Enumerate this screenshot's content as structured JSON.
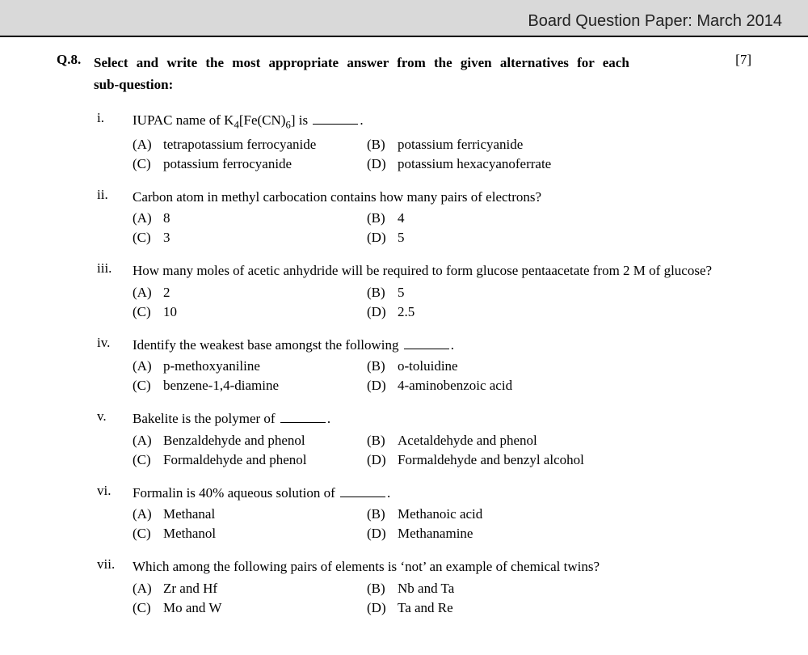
{
  "header": {
    "title": "Board Question Paper: March 2014"
  },
  "question": {
    "number": "Q.8.",
    "stem_line1": "Select and write the most appropriate answer from the given alternatives for each",
    "stem_line2": "sub-question:",
    "marks": "[7]"
  },
  "subs": [
    {
      "roman": "i.",
      "stem_prefix": "IUPAC name of K",
      "stem_sub1": "4",
      "stem_mid": "[Fe(CN)",
      "stem_sub2": "6",
      "stem_suffix": "] is ",
      "stem_after_blank": ".",
      "has_formula": true,
      "options": {
        "A": "tetrapotassium ferrocyanide",
        "B": "potassium ferricyanide",
        "C": "potassium ferrocyanide",
        "D": "potassium hexacyanoferrate"
      }
    },
    {
      "roman": "ii.",
      "stem": "Carbon atom in methyl carbocation contains how many pairs of electrons?",
      "options": {
        "A": "8",
        "B": "4",
        "C": "3",
        "D": "5"
      }
    },
    {
      "roman": "iii.",
      "stem": "How many moles of acetic anhydride will be required to form glucose pentaacetate from 2 M of glucose?",
      "options": {
        "A": "2",
        "B": "5",
        "C": "10",
        "D": "2.5"
      }
    },
    {
      "roman": "iv.",
      "stem_prefix": "Identify the weakest base amongst the following ",
      "stem_after_blank": ".",
      "has_blank": true,
      "options": {
        "A": "p-methoxyaniline",
        "B": "o-toluidine",
        "C": "benzene-1,4-diamine",
        "D": "4-aminobenzoic acid"
      }
    },
    {
      "roman": "v.",
      "stem_prefix": "Bakelite is the polymer of ",
      "stem_after_blank": ".",
      "has_blank": true,
      "options": {
        "A": "Benzaldehyde and phenol",
        "B": "Acetaldehyde and phenol",
        "C": "Formaldehyde and phenol",
        "D": "Formaldehyde and benzyl alcohol"
      }
    },
    {
      "roman": "vi.",
      "stem_prefix": "Formalin is 40% aqueous solution of ",
      "stem_after_blank": ".",
      "has_blank": true,
      "options": {
        "A": "Methanal",
        "B": "Methanoic acid",
        "C": "Methanol",
        "D": "Methanamine"
      }
    },
    {
      "roman": "vii.",
      "stem": "Which among the following pairs of elements is ‘not’ an example of chemical twins?",
      "options": {
        "A": "Zr and Hf",
        "B": "Nb and Ta",
        "C": "Mo and W",
        "D": "Ta and Re"
      }
    }
  ],
  "labels": {
    "A": "(A)",
    "B": "(B)",
    "C": "(C)",
    "D": "(D)"
  }
}
